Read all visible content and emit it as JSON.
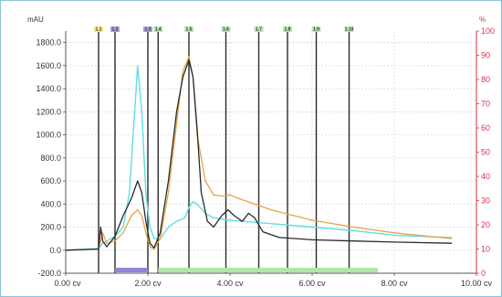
{
  "chart_data": {
    "type": "line",
    "title": "",
    "xlabel": "",
    "ylabel_left": "mAU",
    "ylabel_right": "%",
    "x_range": [
      0,
      10
    ],
    "x_ticks": [
      0,
      2,
      4,
      6,
      8,
      10
    ],
    "x_tick_labels": [
      "0.00 cv",
      "2.00 cv",
      "4.00 cv",
      "6.00 cv",
      "8.00 cv",
      "10.00 cv"
    ],
    "y_left_range": [
      -200,
      1900
    ],
    "y_left_ticks": [
      -200,
      0,
      200,
      400,
      600,
      800,
      1000,
      1200,
      1400,
      1600,
      1800
    ],
    "y_left_tick_labels": [
      "-200.0",
      "0.0",
      "200.0",
      "400.0",
      "600.0",
      "800.0",
      "1000.0",
      "1200.0",
      "1400.0",
      "1600.0",
      "1800.0"
    ],
    "y_right_range": [
      0,
      100
    ],
    "y_right_ticks": [
      0,
      10,
      20,
      30,
      40,
      50,
      60,
      70,
      80,
      90,
      100
    ],
    "y_right_tick_labels": [
      "0",
      "10",
      "20",
      "30",
      "40",
      "50",
      "60",
      "70",
      "80",
      "90",
      "100"
    ],
    "grid": true,
    "colors": {
      "black_trace": "#2a2a2a",
      "cyan_trace": "#5fdfe3",
      "orange_trace": "#e8a24a",
      "fraction_bar_purple": "#8f86d8",
      "fraction_bar_green": "#aee8a6",
      "right_axis": "#d9324a"
    },
    "series": [
      {
        "color": "black",
        "x": [
          0,
          0.8,
          0.85,
          0.9,
          1.0,
          1.2,
          1.4,
          1.6,
          1.75,
          1.85,
          1.95,
          2.05,
          2.15,
          2.3,
          2.5,
          2.7,
          2.85,
          3.0,
          3.1,
          3.2,
          3.3,
          3.45,
          3.6,
          3.8,
          3.95,
          4.1,
          4.3,
          4.45,
          4.6,
          4.8,
          5.2,
          6.0,
          7.0,
          8.0,
          9.4
        ],
        "y": [
          0,
          10,
          200,
          80,
          30,
          120,
          300,
          450,
          600,
          500,
          250,
          60,
          20,
          150,
          600,
          1200,
          1500,
          1650,
          1500,
          1050,
          500,
          250,
          200,
          300,
          350,
          300,
          250,
          320,
          280,
          160,
          110,
          90,
          80,
          70,
          60
        ]
      },
      {
        "color": "cyan",
        "x": [
          0,
          0.8,
          0.9,
          1.0,
          1.2,
          1.4,
          1.55,
          1.65,
          1.75,
          1.85,
          1.95,
          2.05,
          2.15,
          2.3,
          2.5,
          2.7,
          2.9,
          3.0,
          3.1,
          3.2,
          3.4,
          3.6,
          4.0,
          5.0,
          6.0,
          7.0,
          8.0,
          9.4
        ],
        "y": [
          0,
          15,
          60,
          80,
          120,
          200,
          500,
          1050,
          1600,
          1200,
          500,
          200,
          100,
          100,
          200,
          250,
          280,
          370,
          420,
          400,
          320,
          280,
          260,
          230,
          200,
          170,
          130,
          110
        ]
      },
      {
        "color": "orange",
        "x": [
          0,
          0.8,
          0.9,
          1.0,
          1.2,
          1.4,
          1.6,
          1.75,
          1.85,
          1.95,
          2.05,
          2.15,
          2.3,
          2.5,
          2.7,
          2.85,
          3.0,
          3.1,
          3.2,
          3.4,
          3.6,
          3.8,
          4.0,
          4.2,
          5.0,
          6.0,
          7.0,
          8.0,
          9.4
        ],
        "y": [
          0,
          10,
          150,
          60,
          80,
          150,
          300,
          350,
          300,
          150,
          30,
          10,
          100,
          500,
          1100,
          1550,
          1680,
          1500,
          1000,
          600,
          480,
          470,
          480,
          450,
          350,
          260,
          200,
          150,
          100
        ]
      }
    ],
    "fraction_markers": [
      {
        "label": "1.1",
        "x": 0.8,
        "color": "#f4ec7a"
      },
      {
        "label": "1.2",
        "x": 1.2,
        "color": "#a8a3de"
      },
      {
        "label": "1.3",
        "x": 2.0,
        "color": "#a8a3de"
      },
      {
        "label": "1.4",
        "x": 2.25,
        "color": "#b7eab0"
      },
      {
        "label": "1.5",
        "x": 3.0,
        "color": "#b7eab0"
      },
      {
        "label": "1.6",
        "x": 3.9,
        "color": "#b7eab0"
      },
      {
        "label": "1.7",
        "x": 4.7,
        "color": "#b7eab0"
      },
      {
        "label": "1.8",
        "x": 5.4,
        "color": "#b7eab0"
      },
      {
        "label": "1.9",
        "x": 6.1,
        "color": "#b7eab0"
      },
      {
        "label": "1.10",
        "x": 6.9,
        "color": "#b7eab0"
      }
    ],
    "fraction_bars": [
      {
        "x_start": 1.2,
        "x_end": 2.0,
        "color": "purple"
      },
      {
        "x_start": 2.25,
        "x_end": 7.6,
        "color": "green"
      }
    ]
  }
}
